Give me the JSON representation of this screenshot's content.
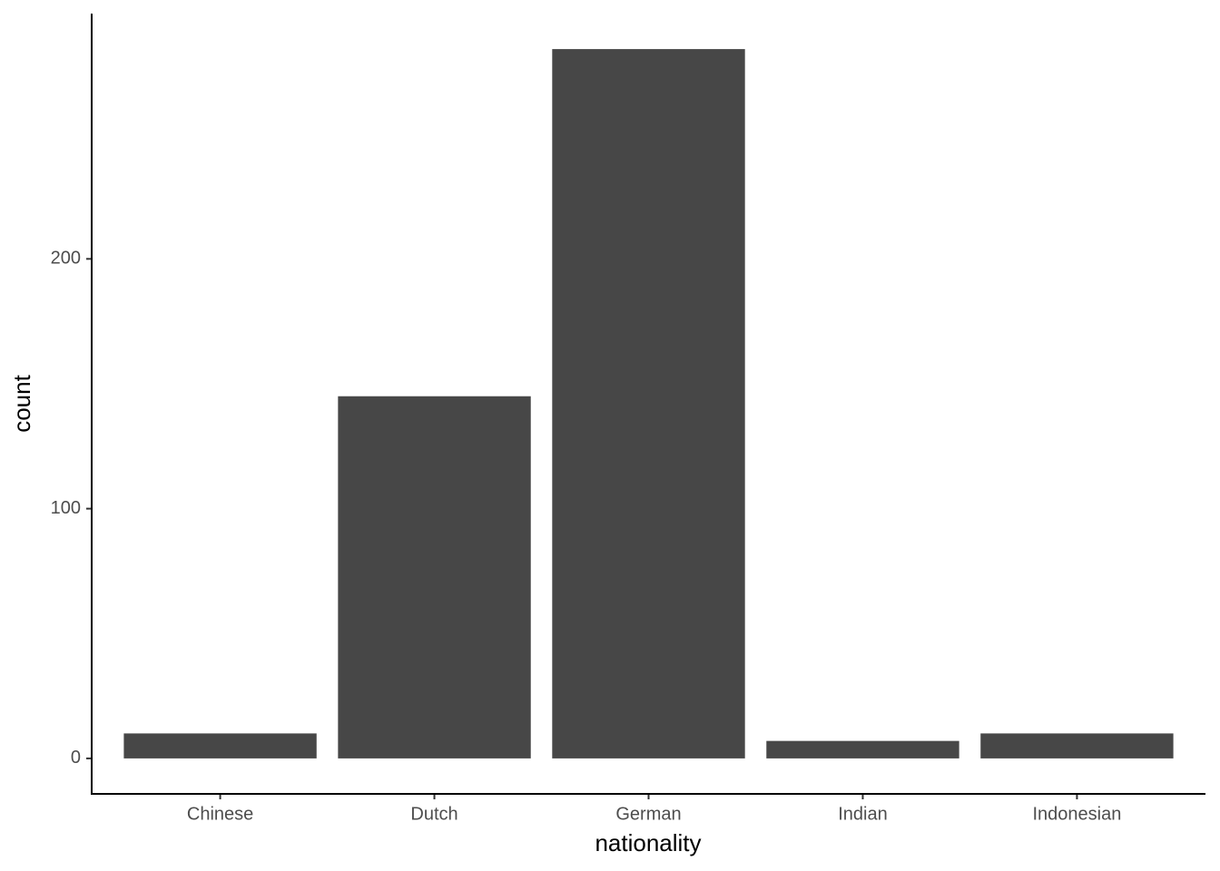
{
  "chart_data": {
    "type": "bar",
    "x_label": "nationality",
    "y_label": "count",
    "categories": [
      "Chinese",
      "Dutch",
      "German",
      "Indian",
      "Indonesian"
    ],
    "values": [
      10,
      145,
      284,
      7,
      10
    ],
    "color": "#474747",
    "ylim": [
      -14.2,
      298.2
    ],
    "yticks": [
      0,
      100,
      200
    ],
    "grid": false
  }
}
